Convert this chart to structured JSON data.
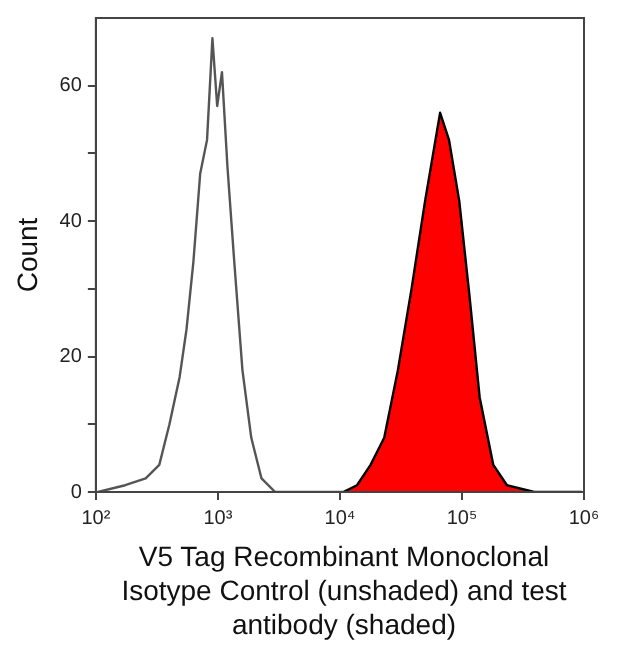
{
  "chart_data": {
    "type": "line",
    "xlabel": "V5 Tag Recombinant Monoclonal Isotype Control (unshaded) and test antibody (shaded)",
    "ylabel": "Count",
    "log": "x",
    "grid": false,
    "legend": false,
    "marker": "none",
    "xlim": [
      100,
      1000000
    ],
    "xticks": [
      {
        "value": 100,
        "label": "10²"
      },
      {
        "value": 1000,
        "label": "10³"
      },
      {
        "value": 10000,
        "label": "10⁴"
      },
      {
        "value": 100000,
        "label": "10⁵"
      },
      {
        "value": 1000000,
        "label": "10⁶"
      }
    ],
    "ylim": [
      0,
      70
    ],
    "yticks": [
      0,
      {
        "value": 10,
        "label": null
      },
      20,
      {
        "value": 30,
        "label": null
      },
      40,
      {
        "value": 50,
        "label": null
      },
      60
    ],
    "series": [
      {
        "type": "line",
        "color": "#555555",
        "x": [
          104,
          174,
          256,
          331,
          401,
          486,
          553,
          630,
          716,
          815,
          902,
          987,
          1080,
          1198,
          1362,
          1589,
          1878,
          2278,
          2946,
          5610,
          10670
        ],
        "values": [
          0,
          1,
          2,
          4,
          10,
          17,
          24,
          34,
          47,
          52,
          67,
          57,
          62,
          48,
          34,
          18,
          8,
          2,
          0,
          0,
          0
        ]
      },
      {
        "type": "area",
        "color": "#ff0000",
        "x": [
          10670,
          13800,
          17830,
          23070,
          29850,
          38620,
          49890,
          66220,
          78310,
          95000,
          115200,
          139600,
          180600,
          233800,
          390900,
          961000
        ],
        "values": [
          0,
          1,
          4,
          8,
          18,
          30,
          43,
          56,
          52,
          43,
          29,
          14,
          4,
          1,
          0,
          0
        ]
      }
    ]
  }
}
